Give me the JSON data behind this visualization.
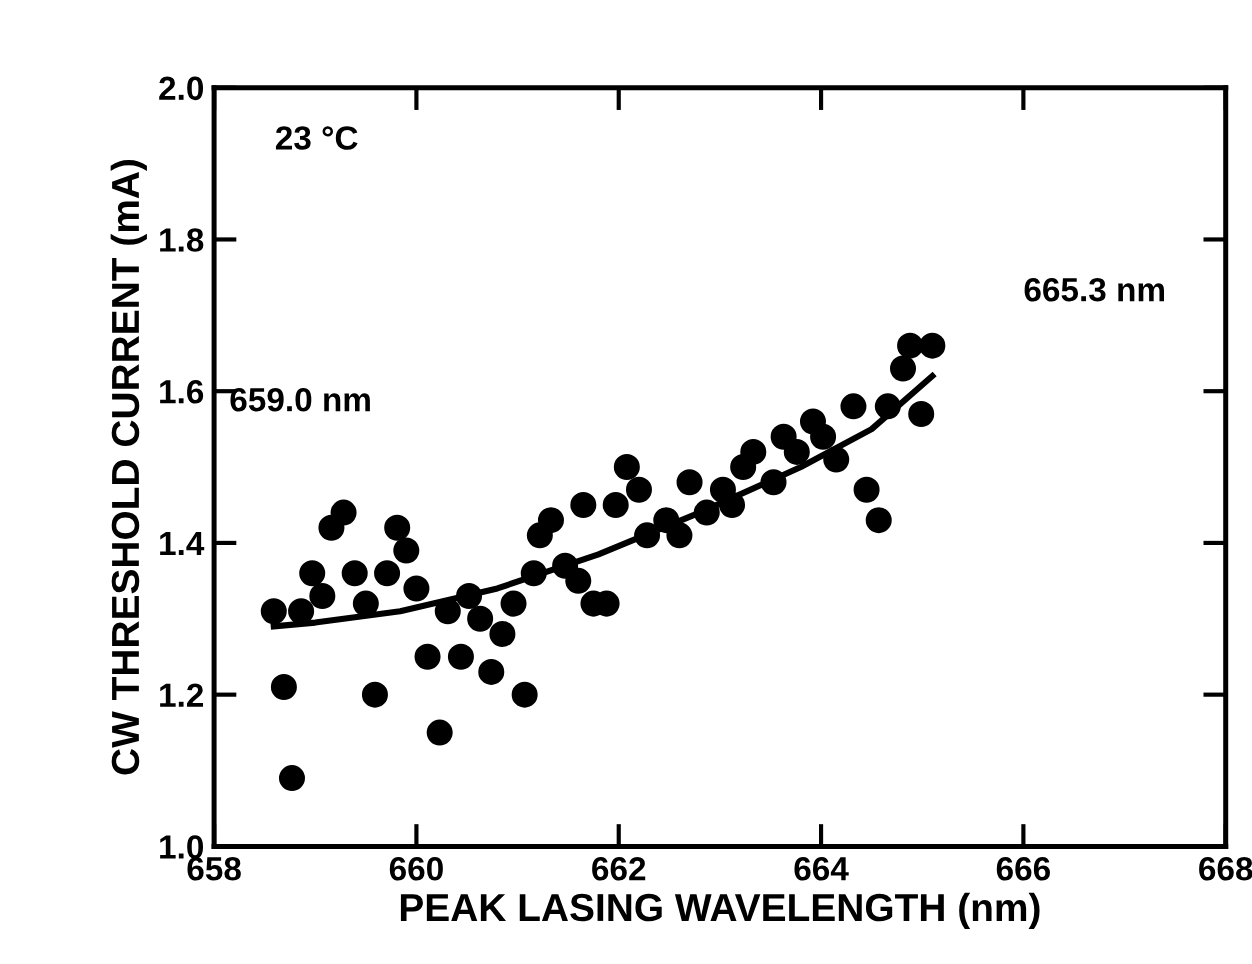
{
  "chart_data": {
    "type": "scatter",
    "xlabel": "PEAK LASING WAVELENGTH (nm)",
    "ylabel": "CW THRESHOLD CURRENT (mA)",
    "annotations": [
      "23 °C",
      "659.0 nm",
      "665.3 nm"
    ],
    "xlim": [
      658,
      668
    ],
    "xticks": [
      658,
      660,
      662,
      664,
      666,
      668
    ],
    "ylim": [
      1.0,
      2.0
    ],
    "yticks": [
      {
        "value": 1.0,
        "label": "1.0"
      },
      1.2,
      1.4,
      1.6,
      1.8,
      {
        "value": 2.0,
        "label": "2.0"
      }
    ],
    "grid": false,
    "marker": "circle",
    "series": [
      {
        "color": "#000000",
        "x": [
          658.59,
          658.69,
          658.77,
          658.86,
          658.97,
          659.07,
          659.16,
          659.28,
          659.39,
          659.5,
          659.59,
          659.71,
          659.81,
          659.9,
          660.0,
          660.11,
          660.23,
          660.31,
          660.44,
          660.52,
          660.63,
          660.74,
          660.85,
          660.96,
          661.07,
          661.16,
          661.22,
          661.33,
          661.47,
          661.6,
          661.65,
          661.75,
          661.88,
          661.97,
          662.08,
          662.2,
          662.28,
          662.47,
          662.6,
          662.7,
          662.87,
          663.03,
          663.12,
          663.23,
          663.33,
          663.53,
          663.63,
          663.76,
          663.92,
          664.02,
          664.15,
          664.32,
          664.45,
          664.57,
          664.66,
          664.81,
          664.88,
          664.99,
          665.1
        ],
        "values": [
          1.31,
          1.21,
          1.09,
          1.31,
          1.36,
          1.33,
          1.42,
          1.44,
          1.36,
          1.32,
          1.2,
          1.36,
          1.42,
          1.39,
          1.34,
          1.25,
          1.15,
          1.31,
          1.25,
          1.33,
          1.3,
          1.23,
          1.28,
          1.32,
          1.2,
          1.36,
          1.41,
          1.43,
          1.37,
          1.35,
          1.45,
          1.32,
          1.32,
          1.45,
          1.5,
          1.47,
          1.41,
          1.43,
          1.41,
          1.48,
          1.44,
          1.47,
          1.45,
          1.5,
          1.52,
          1.48,
          1.54,
          1.52,
          1.56,
          1.54,
          1.51,
          1.58,
          1.47,
          1.43,
          1.58,
          1.63,
          1.66,
          1.57,
          1.66
        ]
      },
      {
        "type": "line",
        "color": "#000000",
        "marker": "none",
        "x": [
          658.59,
          659.0,
          659.84,
          660.8,
          661.8,
          662.8,
          663.8,
          664.5,
          665.1
        ],
        "values": [
          1.29,
          1.295,
          1.31,
          1.34,
          1.385,
          1.44,
          1.5,
          1.55,
          1.62
        ]
      }
    ]
  }
}
